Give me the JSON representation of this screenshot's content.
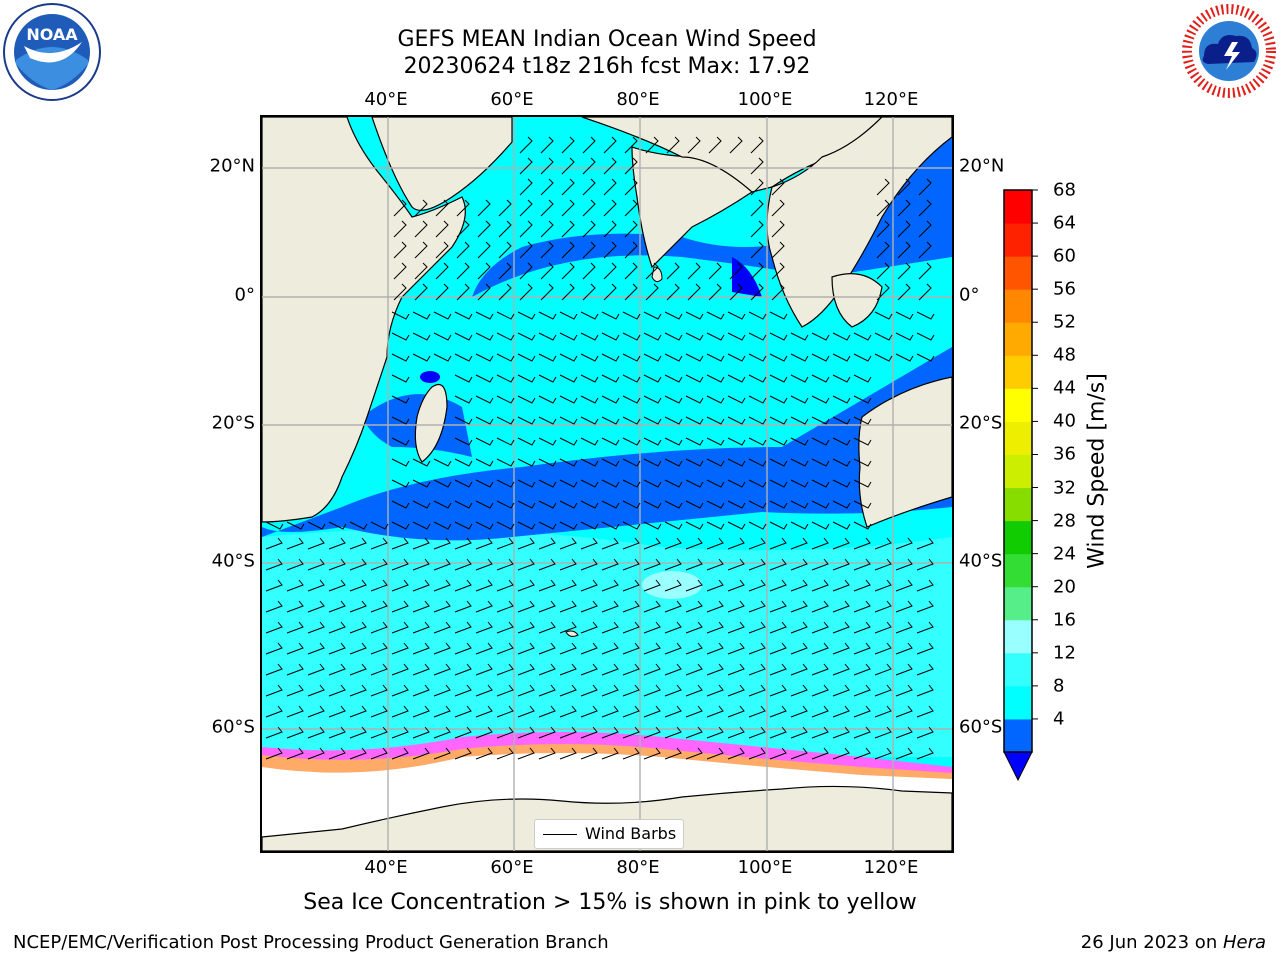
{
  "header": {
    "title_line1": "GEFS MEAN Indian Ocean Wind Speed",
    "title_line2": "20230624 t18z 216h fcst   Max: 17.92"
  },
  "map": {
    "lon_labels": [
      "40°E",
      "60°E",
      "80°E",
      "100°E",
      "120°E"
    ],
    "lat_labels_left": [
      "20°N",
      "0°",
      "20°S",
      "40°S",
      "60°S"
    ],
    "lat_labels_right": [
      "20°N",
      "0°",
      "20°S",
      "40°S",
      "60°S"
    ],
    "lon_range": [
      20,
      130
    ],
    "lat_range": [
      -72,
      28
    ],
    "gridlines": true,
    "legend": {
      "label": "Wind Barbs",
      "placement": "bottom-center"
    },
    "colors": {
      "land": "#eeeddd",
      "sea_ice": "#ffffff",
      "ice_edge": [
        "#ff66ff",
        "#ffaa66",
        "#ffee88"
      ]
    }
  },
  "colorbar": {
    "title": "Wind Speed [m/s]",
    "tick_labels": [
      "68",
      "64",
      "60",
      "56",
      "52",
      "48",
      "44",
      "40",
      "36",
      "32",
      "28",
      "24",
      "20",
      "16",
      "12",
      "8",
      "4"
    ],
    "levels": [
      4,
      8,
      12,
      16,
      20,
      24,
      28,
      32,
      36,
      40,
      44,
      48,
      52,
      56,
      60,
      64,
      68
    ],
    "colors": [
      "#0066ff",
      "#00ffff",
      "#33ffff",
      "#99ffff",
      "#55ee88",
      "#33dd33",
      "#11cc00",
      "#88dd00",
      "#ccee00",
      "#eeee00",
      "#ffff00",
      "#ffcc00",
      "#ffaa00",
      "#ff8800",
      "#ff5500",
      "#ff2200",
      "#ff0000"
    ],
    "under_color": "#0000ff"
  },
  "notes": {
    "sea_ice": "Sea Ice Concentration > 15% is shown in pink to yellow"
  },
  "footer": {
    "left": "NCEP/EMC/Verification Post Processing Product Generation Branch",
    "right_prefix": "26 Jun 2023 on ",
    "right_machine": "Hera"
  },
  "logos": {
    "left": "noaa-logo",
    "right": "national-weather-service-logo"
  }
}
